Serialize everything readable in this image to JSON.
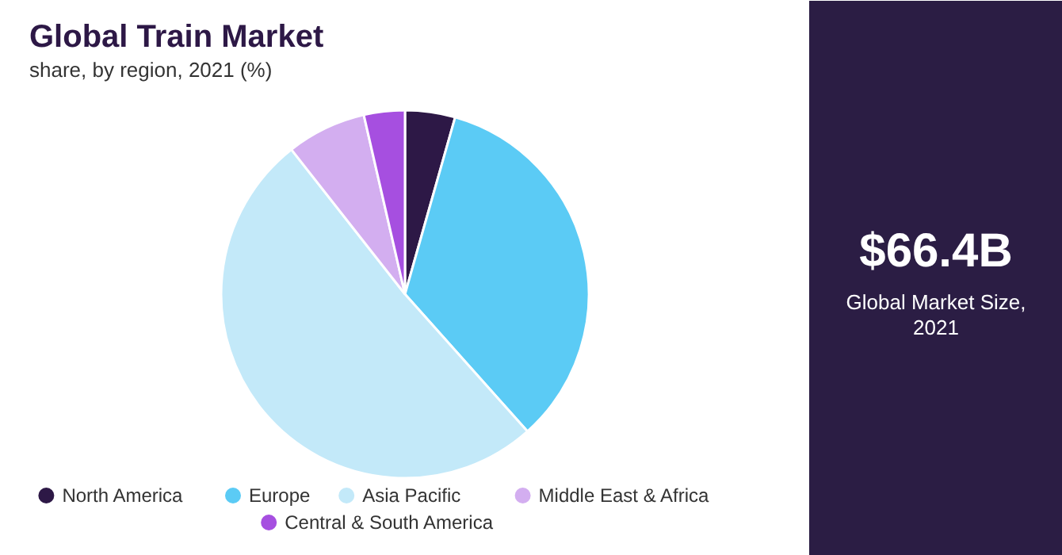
{
  "chart_data": [
    {
      "type": "pie",
      "title": "Global Train Market",
      "subtitle": "share, by region, 2021 (%)",
      "legend": "bottom",
      "categories": [
        "North America",
        "Europe",
        "Asia Pacific",
        "Middle East & Africa",
        "Central & South America"
      ],
      "values": [
        4.4,
        34,
        51,
        7,
        3.6
      ],
      "colors": [
        "#2d1846",
        "#5bcbf5",
        "#c3e9f9",
        "#d3aef0",
        "#a64fe0"
      ]
    },
    {
      "type": "other",
      "title": "$66.4B",
      "subtitle": "Global Market Size, 2021"
    }
  ]
}
